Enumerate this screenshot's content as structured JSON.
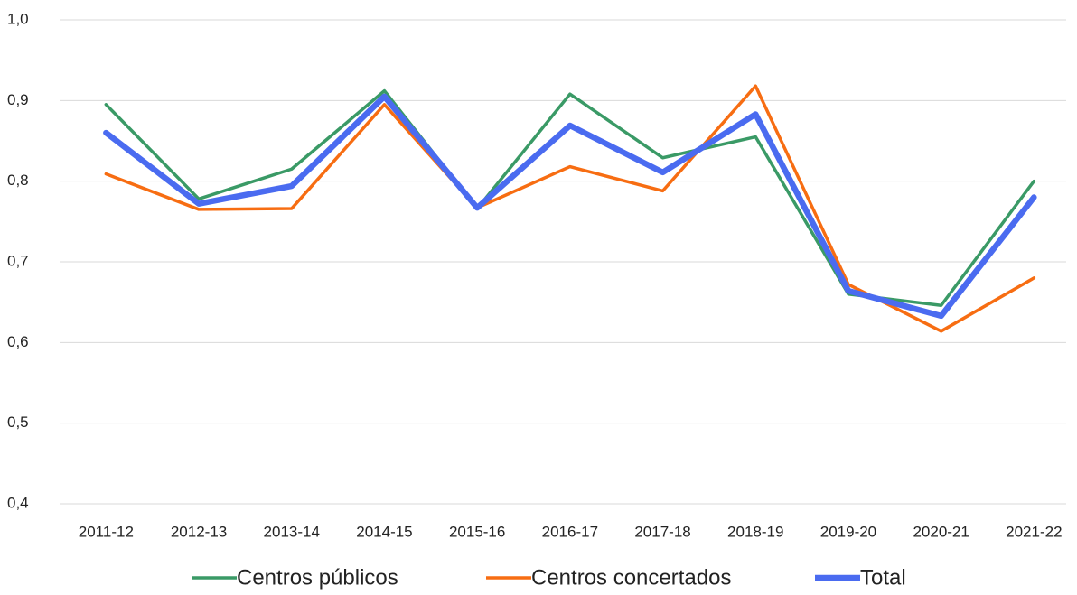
{
  "chart_data": {
    "type": "line",
    "categories": [
      "2011-12",
      "2012-13",
      "2013-14",
      "2014-15",
      "2015-16",
      "2016-17",
      "2017-18",
      "2018-19",
      "2019-20",
      "2020-21",
      "2021-22"
    ],
    "series": [
      {
        "name": "Centros públicos",
        "color": "#3a9a66",
        "values": [
          0.895,
          0.778,
          0.815,
          0.912,
          0.766,
          0.908,
          0.829,
          0.855,
          0.66,
          0.646,
          0.8
        ]
      },
      {
        "name": "Centros concertados",
        "color": "#f76d12",
        "values": [
          0.809,
          0.765,
          0.766,
          0.895,
          0.767,
          0.818,
          0.788,
          0.918,
          0.672,
          0.614,
          0.68
        ]
      },
      {
        "name": "Total",
        "color": "#4a6bf0",
        "values": [
          0.86,
          0.772,
          0.794,
          0.905,
          0.767,
          0.869,
          0.811,
          0.883,
          0.664,
          0.633,
          0.78
        ]
      }
    ],
    "ylim": [
      0.4,
      1.0
    ],
    "yticks": [
      {
        "value": 0.4,
        "label": "0,4"
      },
      {
        "value": 0.5,
        "label": "0,5"
      },
      {
        "value": 0.6,
        "label": "0,6"
      },
      {
        "value": 0.7,
        "label": "0,7"
      },
      {
        "value": 0.8,
        "label": "0,8"
      },
      {
        "value": 0.9,
        "label": "0,9"
      },
      {
        "value": 1.0,
        "label": "1,0"
      }
    ],
    "grid": true,
    "legend": "bottom"
  }
}
